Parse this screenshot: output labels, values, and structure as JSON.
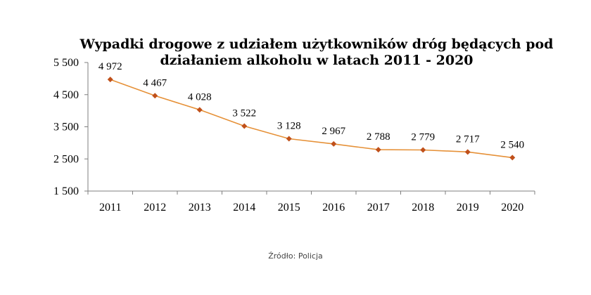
{
  "chart_data": {
    "type": "line",
    "title_lines": [
      "Wypadki drogowe z udziałem użytkowników dróg będących pod",
      "działaniem alkoholu  w latach 2011 - 2020"
    ],
    "x": [
      "2011",
      "2012",
      "2013",
      "2014",
      "2015",
      "2016",
      "2017",
      "2018",
      "2019",
      "2020"
    ],
    "values": [
      4972,
      4467,
      4028,
      3522,
      3128,
      2967,
      2788,
      2779,
      2717,
      2540
    ],
    "value_labels": [
      "4 972",
      "4 467",
      "4 028",
      "3 522",
      "3 128",
      "2 967",
      "2 788",
      "2 779",
      "2 717",
      "2 540"
    ],
    "y_ticks": [
      5500,
      4500,
      3500,
      2500,
      1500
    ],
    "y_tick_labels": [
      "5 500",
      "4 500",
      "3 500",
      "2 500",
      "1 500"
    ],
    "ylim": [
      1500,
      5500
    ],
    "grid": false,
    "legend": "none",
    "line_color": "#e69138",
    "marker_color": "#c0501a",
    "marker": "diamond"
  },
  "source": "Źródło: Policja"
}
